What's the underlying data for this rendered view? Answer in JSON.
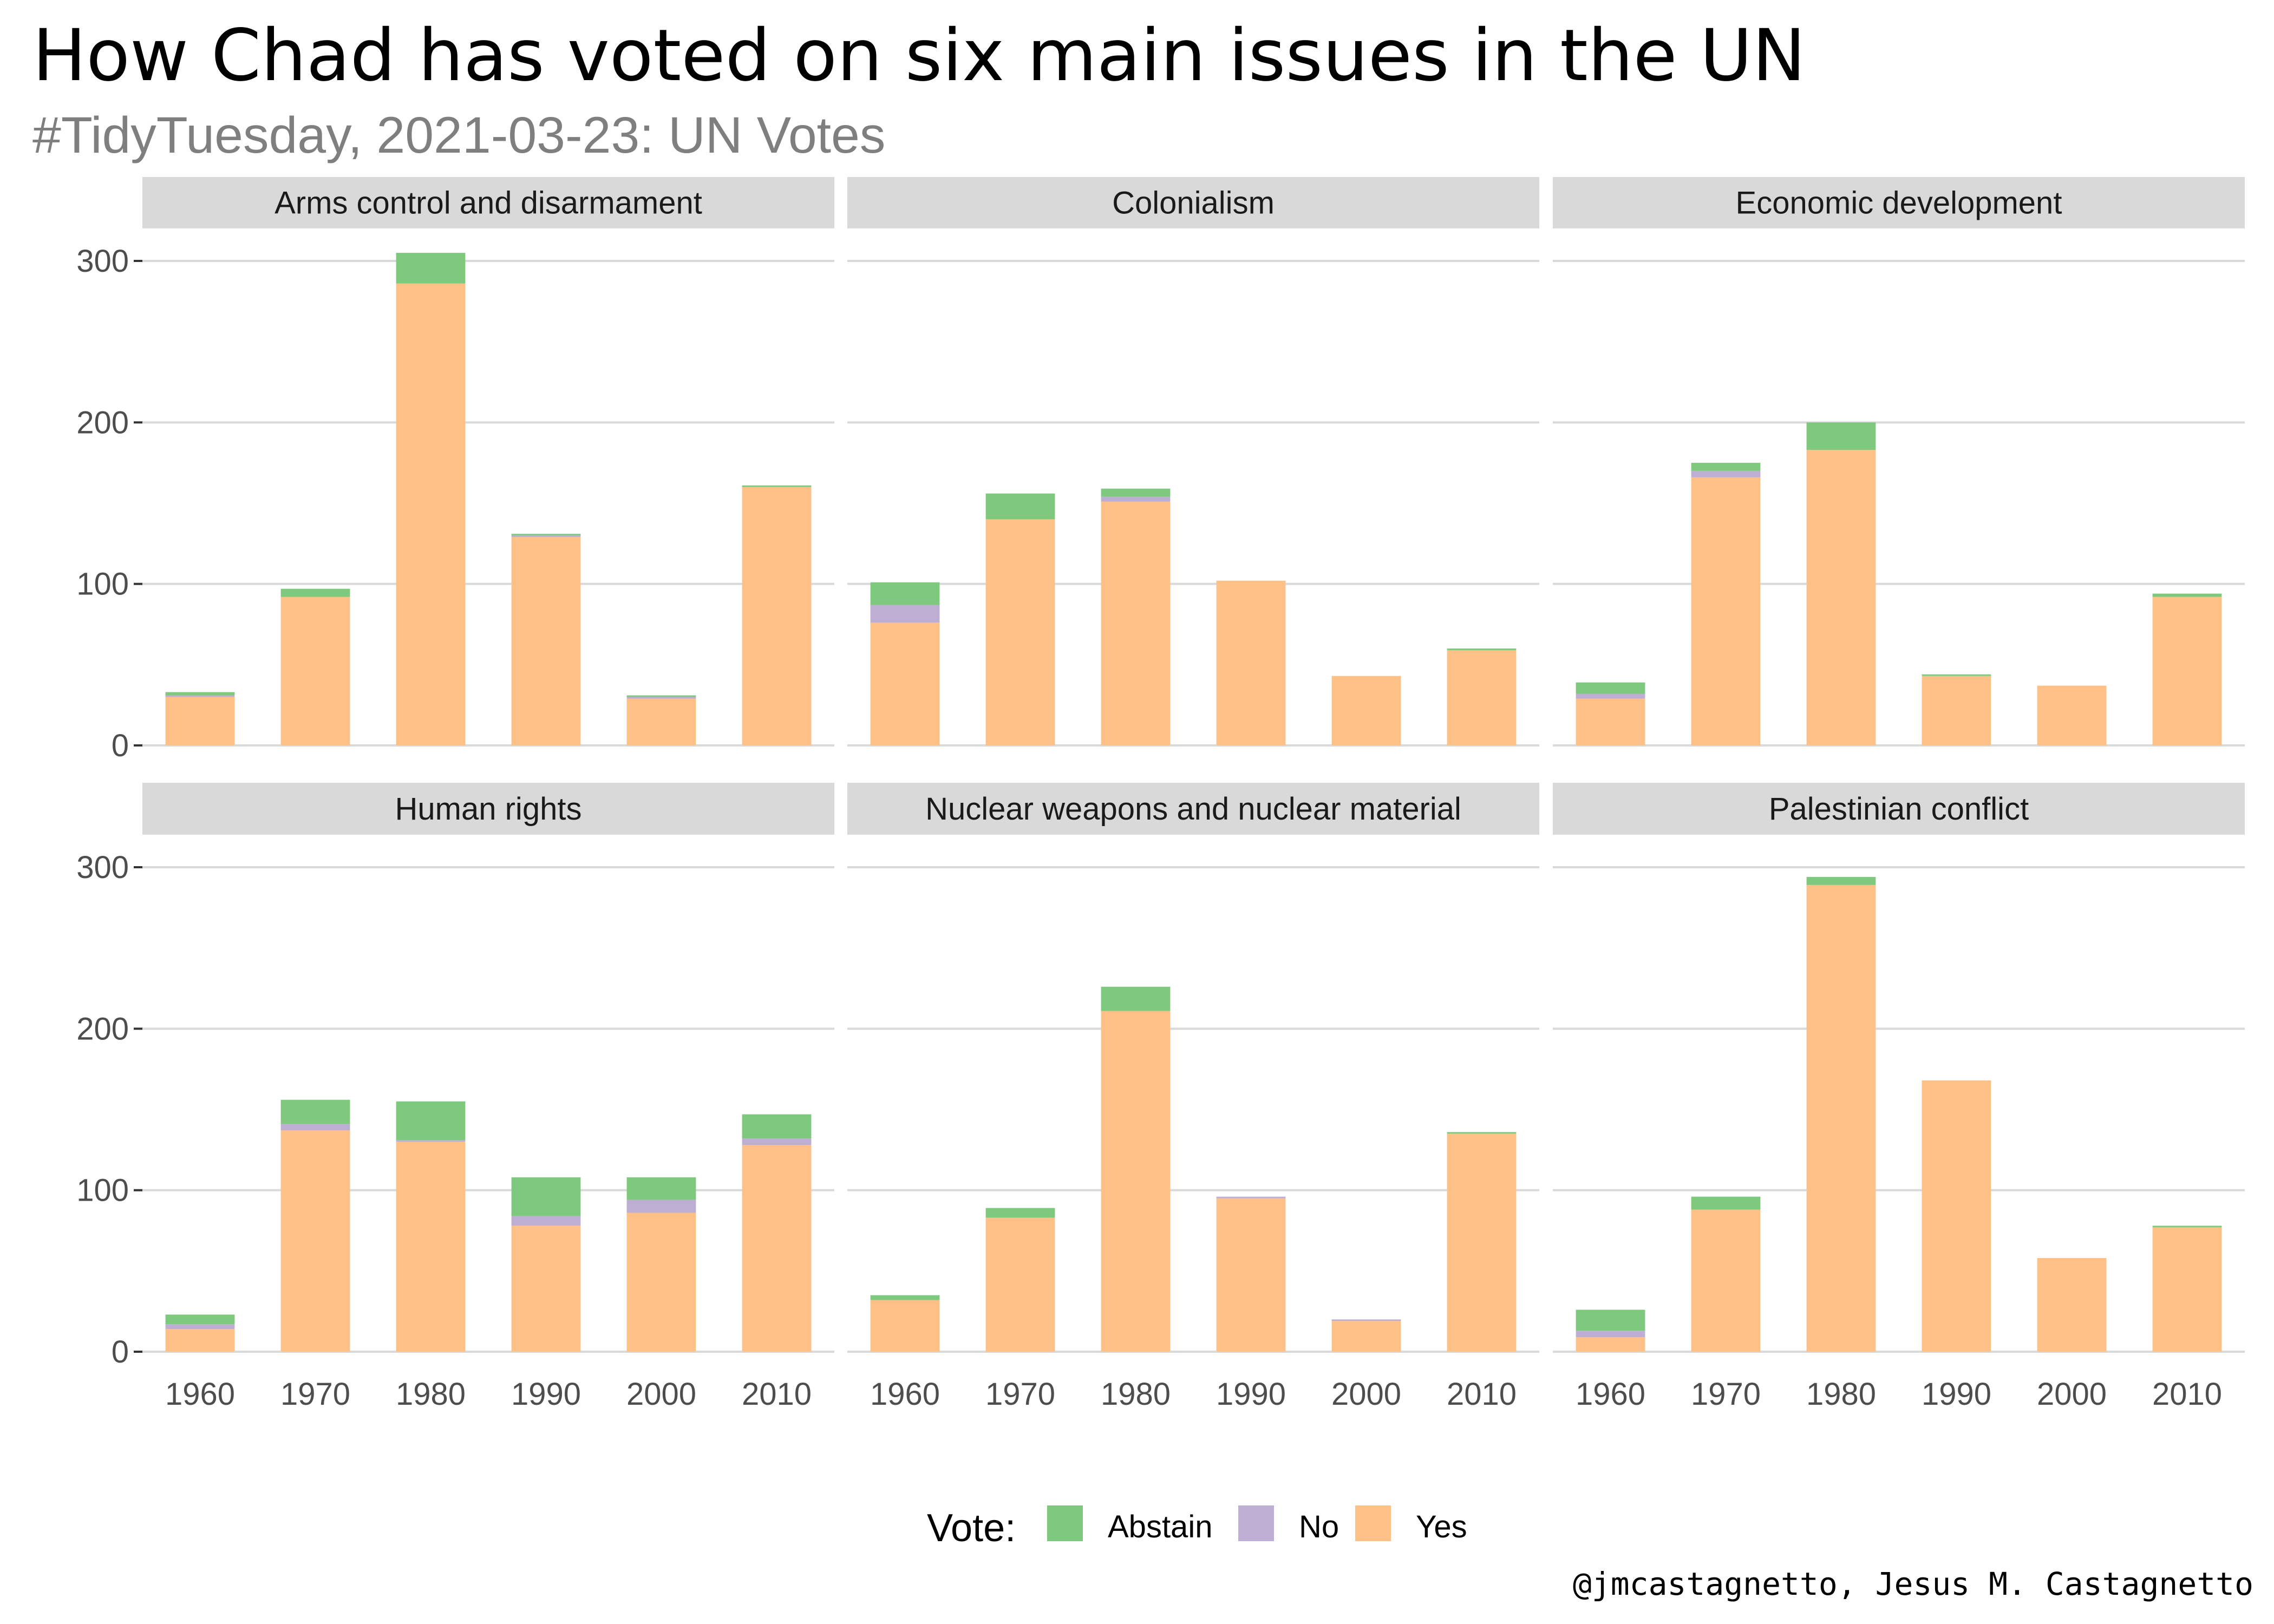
{
  "title": "How Chad has voted on six main issues in the UN",
  "subtitle": "#TidyTuesday, 2021-03-23: UN Votes",
  "caption": "@jmcastagnetto, Jesus M. Castagnetto",
  "colors": {
    "Abstain": "#7fc97f",
    "No": "#beaed4",
    "Yes": "#fdc086",
    "strip": "#d9d9d9",
    "grid": "#d9d9d9",
    "axis_text": "#4d4d4d"
  },
  "chart_data": {
    "type": "bar",
    "stacked": true,
    "facet_layout": {
      "rows": 2,
      "cols": 3
    },
    "categories": [
      "1960",
      "1970",
      "1980",
      "1990",
      "2000",
      "2010"
    ],
    "ylim": [
      0,
      320
    ],
    "yticks": [
      0,
      100,
      200,
      300
    ],
    "grid": true,
    "legend": {
      "title": "Vote:",
      "position": "bottom",
      "entries": [
        "Abstain",
        "No",
        "Yes"
      ]
    },
    "stack_order": [
      "Yes",
      "No",
      "Abstain"
    ],
    "facets": [
      {
        "name": "Arms control and disarmament",
        "series": {
          "Yes": [
            30,
            92,
            286,
            129,
            29,
            160
          ],
          "No": [
            1,
            0,
            0,
            1,
            1,
            0
          ],
          "Abstain": [
            2,
            5,
            19,
            1,
            1,
            1
          ]
        }
      },
      {
        "name": "Colonialism",
        "series": {
          "Yes": [
            76,
            140,
            151,
            102,
            43,
            59
          ],
          "No": [
            11,
            0,
            3,
            0,
            0,
            0
          ],
          "Abstain": [
            14,
            16,
            5,
            0,
            0,
            1
          ]
        }
      },
      {
        "name": "Economic development",
        "series": {
          "Yes": [
            29,
            166,
            183,
            43,
            37,
            92
          ],
          "No": [
            3,
            4,
            0,
            0,
            0,
            0
          ],
          "Abstain": [
            7,
            5,
            17,
            1,
            0,
            2
          ]
        }
      },
      {
        "name": "Human rights",
        "series": {
          "Yes": [
            14,
            137,
            130,
            78,
            86,
            128
          ],
          "No": [
            3,
            4,
            1,
            6,
            8,
            4
          ],
          "Abstain": [
            6,
            15,
            24,
            24,
            14,
            15
          ]
        }
      },
      {
        "name": "Nuclear weapons and nuclear material",
        "series": {
          "Yes": [
            32,
            83,
            211,
            95,
            19,
            135
          ],
          "No": [
            0,
            0,
            0,
            1,
            1,
            0
          ],
          "Abstain": [
            3,
            6,
            15,
            0,
            0,
            1
          ]
        }
      },
      {
        "name": "Palestinian conflict",
        "series": {
          "Yes": [
            9,
            88,
            289,
            168,
            58,
            77
          ],
          "No": [
            4,
            0,
            0,
            0,
            0,
            0
          ],
          "Abstain": [
            13,
            8,
            5,
            0,
            0,
            1
          ]
        }
      }
    ]
  }
}
